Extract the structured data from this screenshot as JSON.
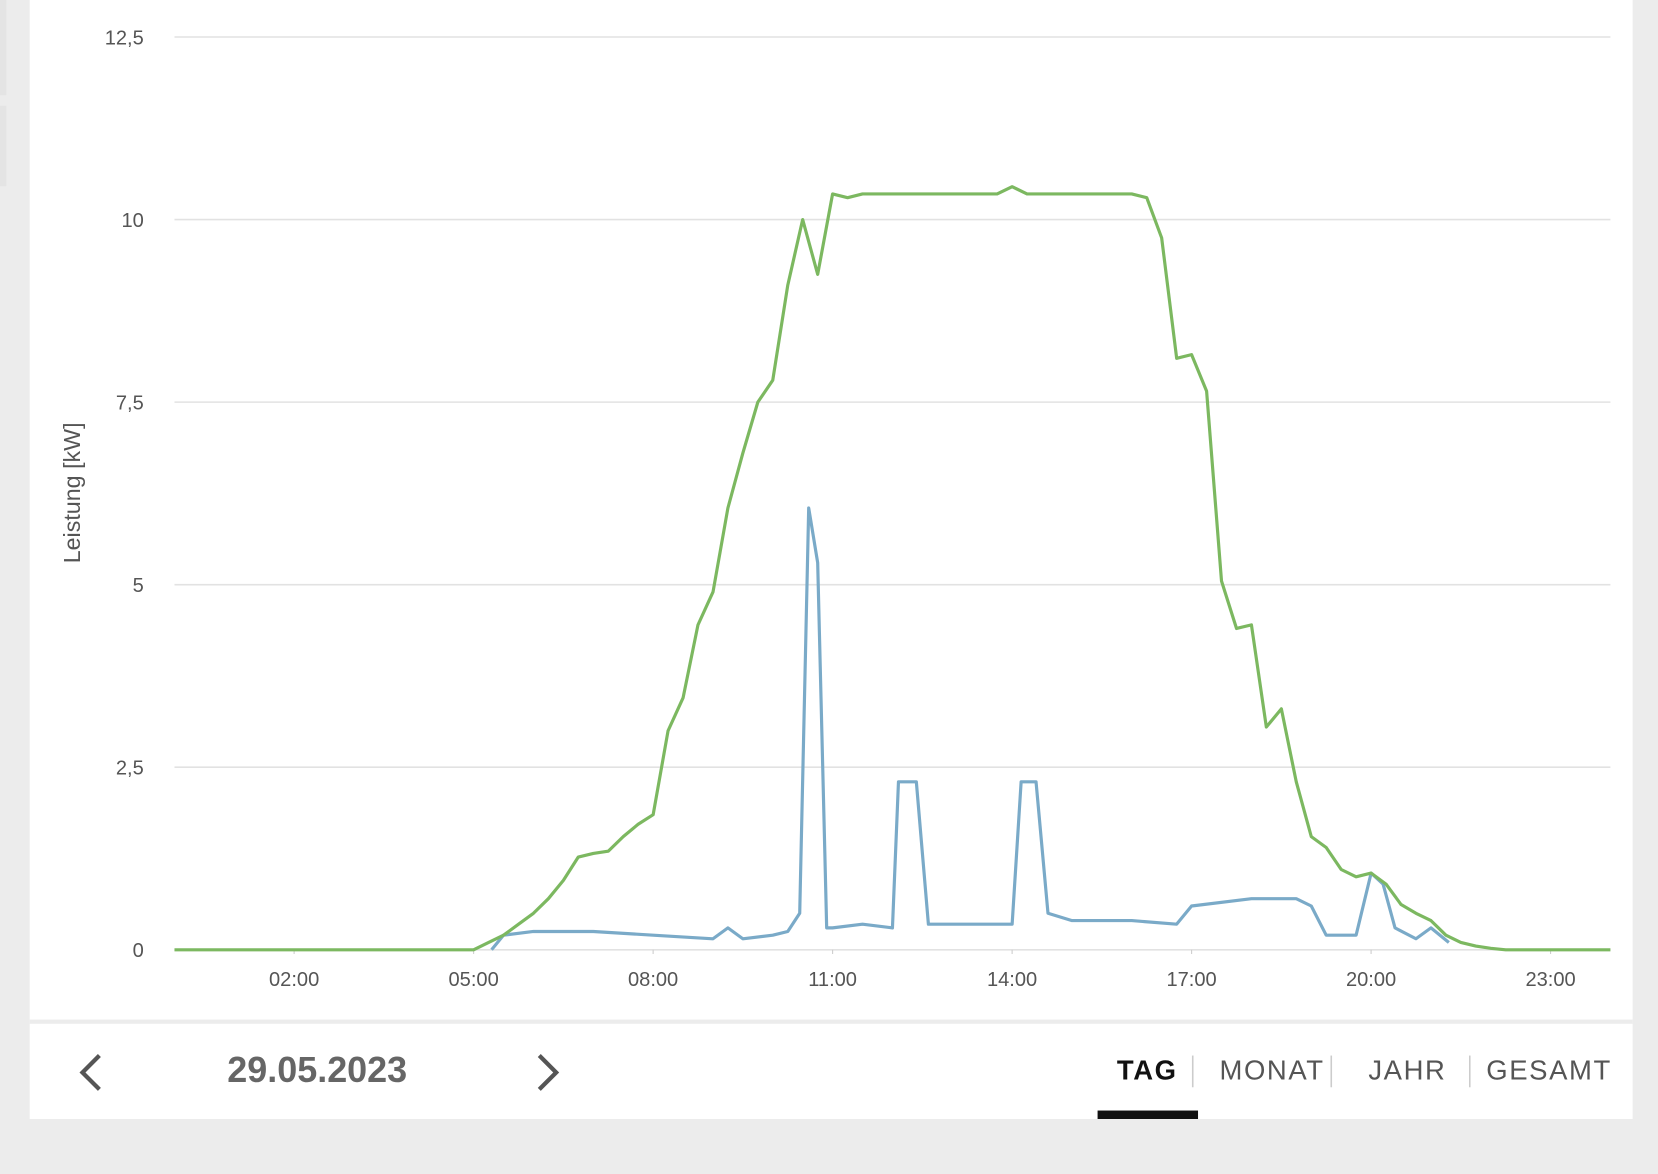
{
  "chart_data": {
    "type": "line",
    "y_label": "Leistung [kW]",
    "xlim": [
      0,
      24
    ],
    "xticks": [
      {
        "value": 2,
        "label": "02:00"
      },
      {
        "value": 5,
        "label": "05:00"
      },
      {
        "value": 8,
        "label": "08:00"
      },
      {
        "value": 11,
        "label": "11:00"
      },
      {
        "value": 14,
        "label": "14:00"
      },
      {
        "value": 17,
        "label": "17:00"
      },
      {
        "value": 20,
        "label": "20:00"
      },
      {
        "value": 23,
        "label": "23:00"
      }
    ],
    "ylim": [
      0,
      12.5
    ],
    "yticks": [
      0,
      {
        "value": 2.5,
        "label": "2,5"
      },
      5,
      {
        "value": 7.5,
        "label": "7,5"
      },
      10,
      {
        "value": 12.5,
        "label": "12,5"
      }
    ],
    "grid": true,
    "series": [
      {
        "color": "#7aaac8",
        "x": [
          5.3,
          5.5,
          6,
          7,
          8,
          9,
          9.25,
          9.5,
          10,
          10.25,
          10.45,
          10.6,
          10.75,
          10.9,
          11,
          11.5,
          12,
          12.1,
          12.4,
          12.6,
          13,
          14,
          14.15,
          14.4,
          14.6,
          15,
          16,
          16.75,
          17,
          18,
          18.75,
          19,
          19.25,
          19.75,
          20,
          20.2,
          20.4,
          20.75,
          21,
          21.3
        ],
        "values": [
          0,
          0.2,
          0.25,
          0.25,
          0.2,
          0.15,
          0.3,
          0.15,
          0.2,
          0.25,
          0.5,
          6.05,
          5.3,
          0.3,
          0.3,
          0.35,
          0.3,
          2.3,
          2.3,
          0.35,
          0.35,
          0.35,
          2.3,
          2.3,
          0.5,
          0.4,
          0.4,
          0.35,
          0.6,
          0.7,
          0.7,
          0.6,
          0.2,
          0.2,
          1.05,
          0.9,
          0.3,
          0.15,
          0.3,
          0.1
        ]
      },
      {
        "color": "#7cb860",
        "x": [
          0,
          5,
          5.25,
          5.5,
          5.75,
          6,
          6.25,
          6.5,
          6.75,
          7,
          7.25,
          7.5,
          7.75,
          8,
          8.25,
          8.5,
          8.75,
          9,
          9.25,
          9.5,
          9.75,
          10,
          10.25,
          10.5,
          10.75,
          11,
          11.25,
          11.5,
          12,
          13,
          13.75,
          14,
          14.25,
          15,
          16,
          16.25,
          16.5,
          16.75,
          17,
          17.25,
          17.5,
          17.75,
          18,
          18.25,
          18.5,
          18.75,
          19,
          19.25,
          19.5,
          19.75,
          20,
          20.25,
          20.5,
          20.75,
          21,
          21.25,
          21.5,
          21.75,
          22,
          22.25,
          24
        ],
        "values": [
          0,
          0,
          0.1,
          0.2,
          0.35,
          0.5,
          0.7,
          0.95,
          1.27,
          1.32,
          1.35,
          1.55,
          1.72,
          1.85,
          3.0,
          3.45,
          4.45,
          4.9,
          6.05,
          6.8,
          7.5,
          7.8,
          9.1,
          10.0,
          9.25,
          10.35,
          10.3,
          10.35,
          10.35,
          10.35,
          10.35,
          10.45,
          10.35,
          10.35,
          10.35,
          10.3,
          9.75,
          8.1,
          8.15,
          7.65,
          5.05,
          4.4,
          4.45,
          3.05,
          3.3,
          2.3,
          1.55,
          1.4,
          1.1,
          1.0,
          1.05,
          0.9,
          0.62,
          0.5,
          0.4,
          0.2,
          0.1,
          0.05,
          0.02,
          0,
          0
        ]
      }
    ]
  },
  "navigation": {
    "date": "29.05.2023",
    "tabs": [
      "TAG",
      "MONAT",
      "JAHR",
      "GESAMT"
    ]
  }
}
